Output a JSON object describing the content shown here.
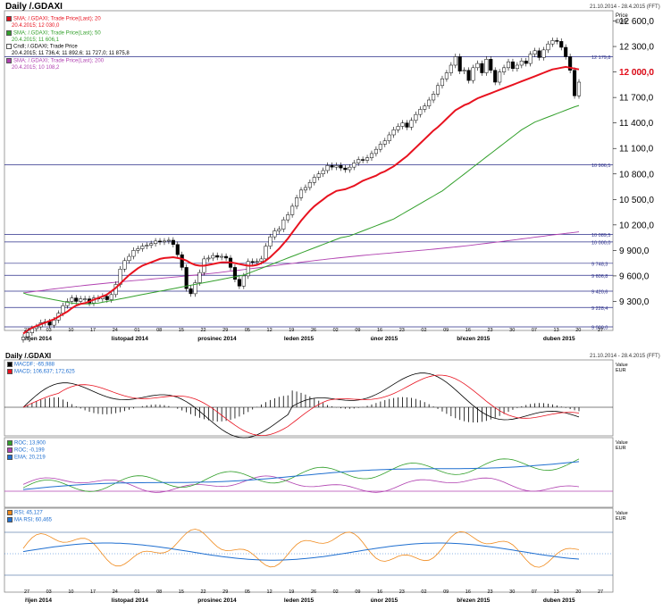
{
  "header": {
    "title": "Daily /.GDAXI",
    "range": "21.10.2014 - 28.4.2015 (FFT)"
  },
  "sub_header": {
    "title": "Daily /.GDAXI",
    "range": "21.10.2014 - 28.4.2015 (FFT)"
  },
  "legend_main": [
    {
      "label": "SMA; /.GDAXI; Trade Price(Last); 20",
      "value": "20.4.2015; 12 030,0",
      "color": "#e8121f"
    },
    {
      "label": "SMA; /.GDAXI; Trade Price(Last); 50",
      "value": "20.4.2015; 11 606,1",
      "color": "#33a02c"
    },
    {
      "label": "Cndl; /.GDAXI; Trade Price",
      "value": "20.4.2015; 11 736,4; 11 892,6; 11 727,0; 11 875,8",
      "color": "#000000"
    },
    {
      "label": "SMA; /.GDAXI; Trade Price(Last); 200",
      "value": "20.4.2015; 10 108,2",
      "color": "#b040b0"
    }
  ],
  "legend_macd": [
    {
      "label": "MACDF; -65,988",
      "color": "#000000"
    },
    {
      "label": "MACD; 106,637; 172,625",
      "color": "#e8121f"
    }
  ],
  "legend_roc": [
    {
      "label": "ROC; 13,900",
      "color": "#33a02c"
    },
    {
      "label": "ROC; -0,199",
      "color": "#b040b0"
    },
    {
      "label": "EMA; 20,219",
      "color": "#1f6fd0"
    }
  ],
  "legend_rsi": [
    {
      "label": "RSI; 45,127",
      "color": "#f08a1c"
    },
    {
      "label": "MA RSI; 60,465",
      "color": "#1f6fd0"
    }
  ],
  "axis_units": {
    "price": "Price",
    "currency": "EUR",
    "value": "Value"
  },
  "chart_data": {
    "type": "candlestick",
    "x_start": "2014-10-21",
    "x_end": "2015-04-28",
    "y_axis_ticks": [
      "12 600,0",
      "12 300,0",
      "12 000,0",
      "11 700,0",
      "11 400,0",
      "11 100,0",
      "10 800,0",
      "10 500,0",
      "10 200,0",
      "9 900,0",
      "9 600,0",
      "9 300,0"
    ],
    "ylim": [
      9000,
      12700
    ],
    "last_price_label": "12 000,0",
    "x_day_ticks": [
      "27",
      "03",
      "10",
      "17",
      "24",
      "01",
      "08",
      "15",
      "22",
      "29",
      "05",
      "12",
      "19",
      "26",
      "02",
      "09",
      "16",
      "23",
      "02",
      "09",
      "16",
      "23",
      "30",
      "07",
      "13",
      "20",
      "27"
    ],
    "x_month_labels": [
      "říjen 2014",
      "listopad 2014",
      "prosinec 2014",
      "leden 2015",
      "únor 2015",
      "březen 2015",
      "duben 2015"
    ],
    "h_lines": [
      {
        "label": "12 179,8",
        "value": 12179.8
      },
      {
        "label": "10 906,5",
        "value": 10906.5
      },
      {
        "label": "10 089,5",
        "value": 10089.5
      },
      {
        "label": "10 000,0",
        "value": 10000
      },
      {
        "label": "9 748,3",
        "value": 9748.3
      },
      {
        "label": "9 606,8",
        "value": 9606.8
      },
      {
        "label": "9 420,6",
        "value": 9420.6
      },
      {
        "label": "9 228,4",
        "value": 9228.4
      },
      {
        "label": "9 000,0",
        "value": 9000
      }
    ],
    "closes": [
      8880,
      8930,
      8980,
      9000,
      9050,
      9060,
      9020,
      9080,
      9160,
      9250,
      9300,
      9340,
      9300,
      9330,
      9330,
      9280,
      9340,
      9330,
      9360,
      9320,
      9380,
      9500,
      9680,
      9780,
      9830,
      9900,
      9920,
      9950,
      9960,
      9980,
      10010,
      10000,
      10010,
      10020,
      9970,
      9850,
      9700,
      9450,
      9390,
      9520,
      9640,
      9800,
      9810,
      9840,
      9820,
      9830,
      9810,
      9700,
      9560,
      9480,
      9600,
      9770,
      9760,
      9770,
      9800,
      9950,
      10060,
      10130,
      10150,
      10260,
      10320,
      10420,
      10520,
      10610,
      10640,
      10700,
      10760,
      10800,
      10840,
      10900,
      10880,
      10900,
      10870,
      10850,
      10880,
      10930,
      10970,
      10960,
      10990,
      11040,
      11090,
      11150,
      11190,
      11260,
      11320,
      11360,
      11400,
      11350,
      11430,
      11500,
      11560,
      11600,
      11670,
      11740,
      11840,
      11920,
      11990,
      12080,
      12180,
      12010,
      12020,
      11900,
      12050,
      12100,
      11990,
      12150,
      12020,
      11880,
      12000,
      12050,
      12120,
      12040,
      12080,
      12130,
      12100,
      12210,
      12250,
      12170,
      12260,
      12330,
      12370,
      12360,
      12290,
      12180,
      12020,
      11720,
      11880
    ],
    "sma20": [
      8920,
      8960,
      8990,
      9010,
      9030,
      9050,
      9070,
      9090,
      9120,
      9150,
      9180,
      9220,
      9250,
      9270,
      9280,
      9300,
      9320,
      9340,
      9360,
      9380,
      9420,
      9460,
      9510,
      9560,
      9610,
      9650,
      9690,
      9720,
      9740,
      9760,
      9780,
      9800,
      9810,
      9815,
      9820,
      9810,
      9800,
      9780,
      9750,
      9730,
      9720,
      9720,
      9730,
      9740,
      9750,
      9760,
      9760,
      9760,
      9750,
      9740,
      9730,
      9720,
      9720,
      9730,
      9750,
      9780,
      9820,
      9870,
      9920,
      9980,
      10040,
      10110,
      10180,
      10250,
      10310,
      10370,
      10420,
      10460,
      10500,
      10540,
      10570,
      10600,
      10610,
      10620,
      10640,
      10660,
      10690,
      10720,
      10740,
      10760,
      10780,
      10810,
      10830,
      10860,
      10890,
      10930,
      10970,
      11010,
      11060,
      11110,
      11160,
      11210,
      11260,
      11310,
      11350,
      11400,
      11450,
      11500,
      11550,
      11580,
      11610,
      11630,
      11660,
      11690,
      11710,
      11730,
      11750,
      11770,
      11790,
      11810,
      11830,
      11850,
      11870,
      11890,
      11910,
      11930,
      11950,
      11970,
      11990,
      12010,
      12030,
      12040,
      12050,
      12060,
      12050,
      12040,
      12030
    ],
    "sma50": [
      9400,
      9380,
      9370,
      9360,
      9350,
      9340,
      9330,
      9320,
      9310,
      9300,
      9290,
      9280,
      9275,
      9270,
      9270,
      9270,
      9275,
      9280,
      9290,
      9300,
      9310,
      9320,
      9330,
      9340,
      9350,
      9360,
      9370,
      9380,
      9390,
      9400,
      9410,
      9420,
      9430,
      9440,
      9450,
      9460,
      9470,
      9480,
      9490,
      9500,
      9510,
      9520,
      9530,
      9540,
      9550,
      9560,
      9570,
      9580,
      9590,
      9600,
      9610,
      9630,
      9650,
      9670,
      9690,
      9710,
      9730,
      9750,
      9770,
      9790,
      9810,
      9830,
      9850,
      9870,
      9890,
      9910,
      9930,
      9950,
      9970,
      9990,
      10010,
      10030,
      10050,
      10060,
      10070,
      10090,
      10110,
      10130,
      10150,
      10170,
      10190,
      10210,
      10230,
      10250,
      10270,
      10300,
      10330,
      10360,
      10390,
      10420,
      10450,
      10480,
      10510,
      10540,
      10570,
      10600,
      10640,
      10680,
      10720,
      10760,
      10800,
      10840,
      10880,
      10920,
      10960,
      11000,
      11040,
      11080,
      11120,
      11160,
      11200,
      11240,
      11280,
      11320,
      11350,
      11380,
      11410,
      11430,
      11450,
      11470,
      11490,
      11510,
      11530,
      11550,
      11570,
      11590,
      11606
    ]
  }
}
